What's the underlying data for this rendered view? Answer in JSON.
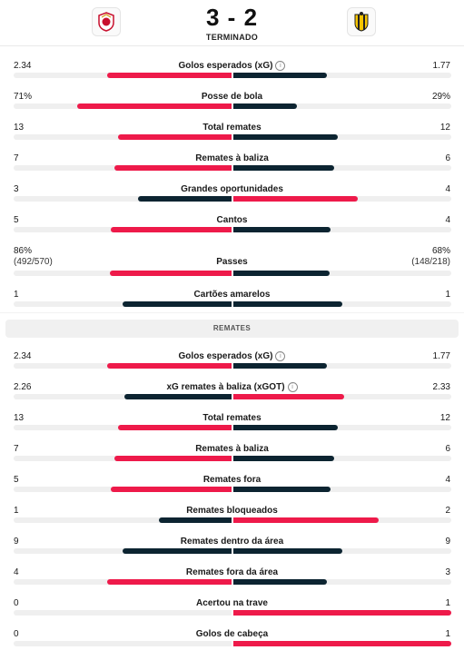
{
  "match": {
    "home_score": "3",
    "away_score": "2",
    "separator": "-",
    "status": "TERMINADO",
    "colors": {
      "home": "#ee1a4a",
      "away": "#0c2431"
    }
  },
  "overview": [
    {
      "name": "Golos esperados (xG)",
      "home": "2.34",
      "away": "1.77",
      "home_val": 2.34,
      "away_val": 1.77,
      "info": true,
      "home_color": "red",
      "away_color": "dark"
    },
    {
      "name": "Posse de bola",
      "home": "71%",
      "away": "29%",
      "home_val": 71,
      "away_val": 29,
      "home_color": "red",
      "away_color": "dark"
    },
    {
      "name": "Total remates",
      "home": "13",
      "away": "12",
      "home_val": 13,
      "away_val": 12,
      "home_color": "red",
      "away_color": "dark"
    },
    {
      "name": "Remates à baliza",
      "home": "7",
      "away": "6",
      "home_val": 7,
      "away_val": 6,
      "home_color": "red",
      "away_color": "dark"
    },
    {
      "name": "Grandes oportunidades",
      "home": "3",
      "away": "4",
      "home_val": 3,
      "away_val": 4,
      "home_color": "dark",
      "away_color": "red"
    },
    {
      "name": "Cantos",
      "home": "5",
      "away": "4",
      "home_val": 5,
      "away_val": 4,
      "home_color": "red",
      "away_color": "dark"
    },
    {
      "name": "Passes",
      "home": "86%",
      "away": "68%",
      "home_sub": "(492/570)",
      "away_sub": "(148/218)",
      "home_val": 86,
      "away_val": 68,
      "home_color": "red",
      "away_color": "dark"
    },
    {
      "name": "Cartões amarelos",
      "home": "1",
      "away": "1",
      "home_val": 1,
      "away_val": 1,
      "home_color": "dark",
      "away_color": "dark"
    }
  ],
  "shots_header": "REMATES",
  "shots": [
    {
      "name": "Golos esperados (xG)",
      "home": "2.34",
      "away": "1.77",
      "home_val": 2.34,
      "away_val": 1.77,
      "info": true,
      "home_color": "red",
      "away_color": "dark"
    },
    {
      "name": "xG remates à baliza (xGOT)",
      "home": "2.26",
      "away": "2.33",
      "home_val": 2.26,
      "away_val": 2.33,
      "info": true,
      "home_color": "dark",
      "away_color": "red"
    },
    {
      "name": "Total remates",
      "home": "13",
      "away": "12",
      "home_val": 13,
      "away_val": 12,
      "home_color": "red",
      "away_color": "dark"
    },
    {
      "name": "Remates à baliza",
      "home": "7",
      "away": "6",
      "home_val": 7,
      "away_val": 6,
      "home_color": "red",
      "away_color": "dark"
    },
    {
      "name": "Remates fora",
      "home": "5",
      "away": "4",
      "home_val": 5,
      "away_val": 4,
      "home_color": "red",
      "away_color": "dark"
    },
    {
      "name": "Remates bloqueados",
      "home": "1",
      "away": "2",
      "home_val": 1,
      "away_val": 2,
      "home_color": "dark",
      "away_color": "red"
    },
    {
      "name": "Remates dentro da área",
      "home": "9",
      "away": "9",
      "home_val": 9,
      "away_val": 9,
      "home_color": "dark",
      "away_color": "dark"
    },
    {
      "name": "Remates fora da área",
      "home": "4",
      "away": "3",
      "home_val": 4,
      "away_val": 3,
      "home_color": "red",
      "away_color": "dark"
    },
    {
      "name": "Acertou na trave",
      "home": "0",
      "away": "1",
      "home_val": 0,
      "away_val": 1,
      "home_color": "dark",
      "away_color": "red"
    },
    {
      "name": "Golos de cabeça",
      "home": "0",
      "away": "1",
      "home_val": 0,
      "away_val": 1,
      "home_color": "dark",
      "away_color": "red"
    }
  ]
}
